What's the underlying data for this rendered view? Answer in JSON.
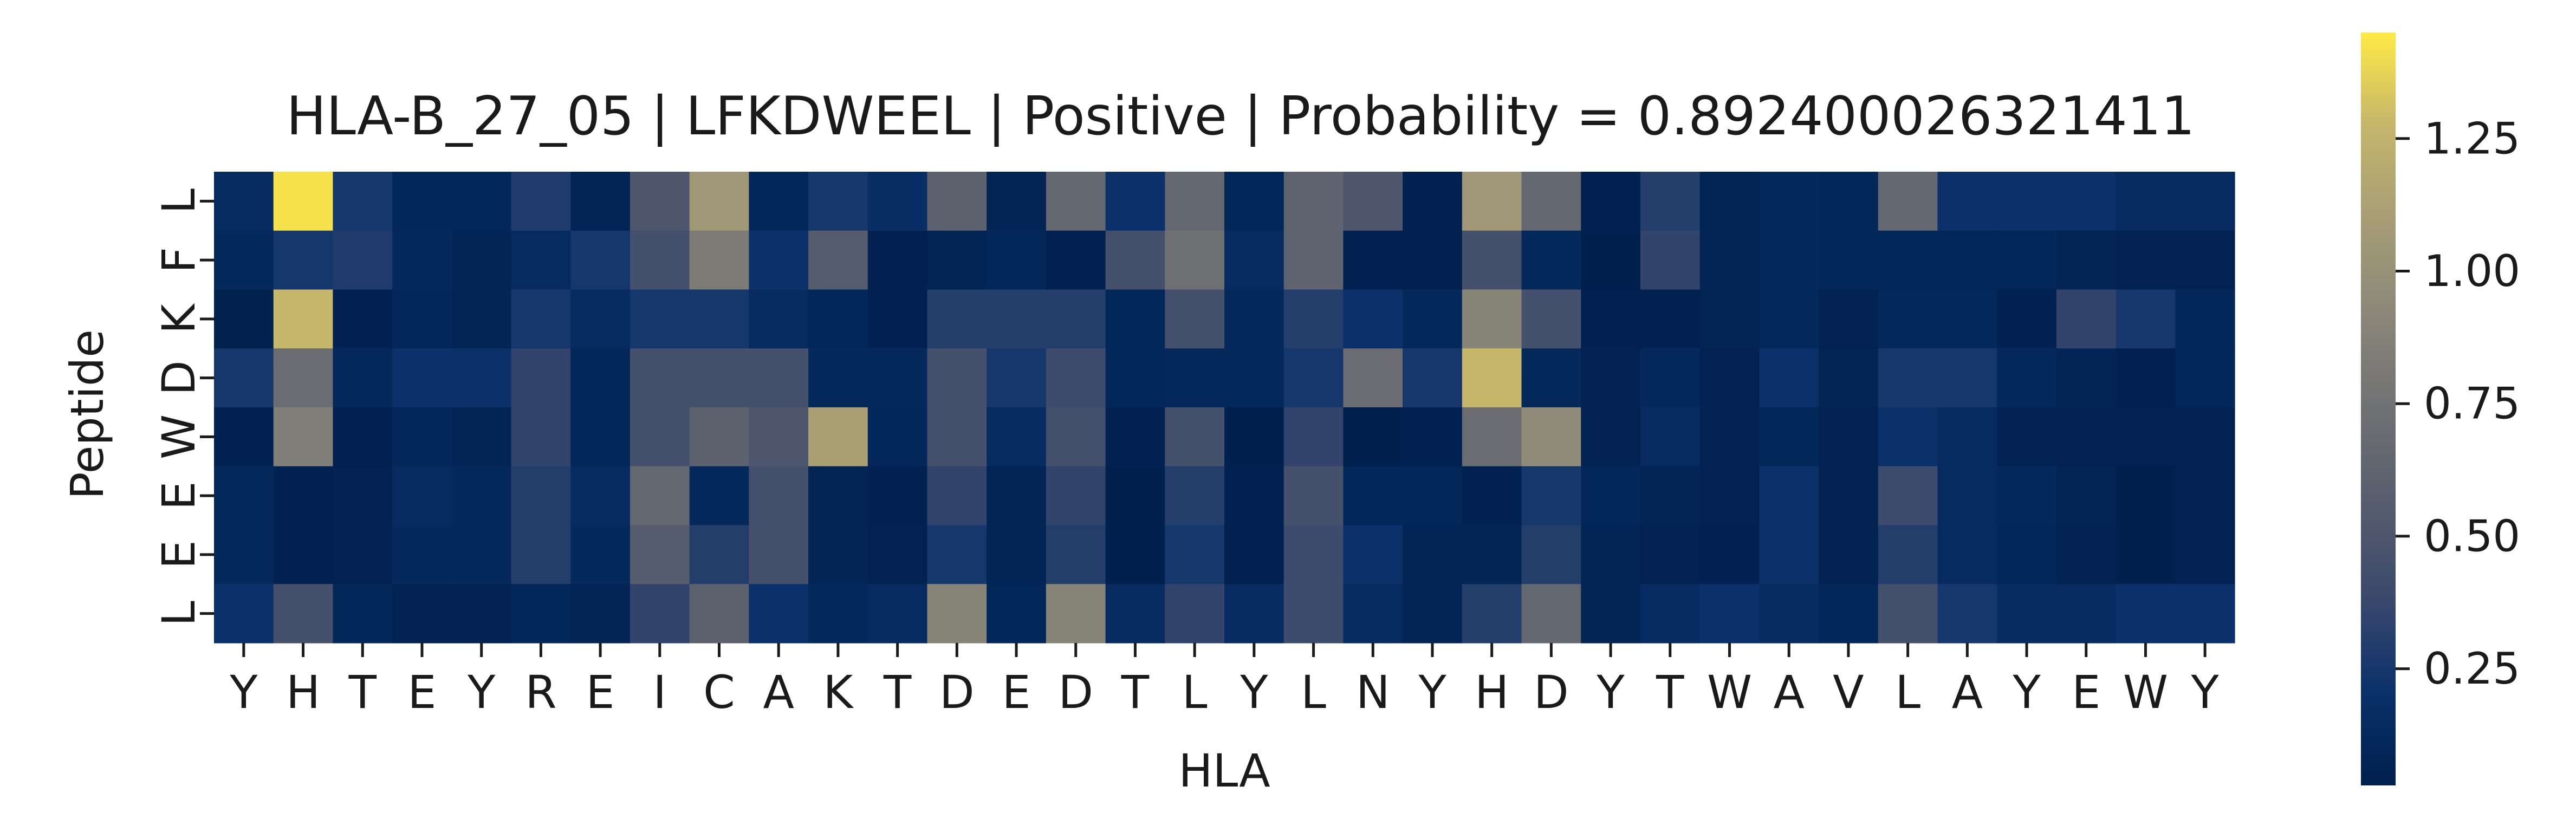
{
  "chart_data": {
    "type": "heatmap",
    "title": "HLA-B_27_05 | LFKDWEEL | Positive | Probability = 0.892400026321411",
    "xlabel": "HLA",
    "ylabel": "Peptide",
    "x_categories": [
      "Y",
      "H",
      "T",
      "E",
      "Y",
      "R",
      "E",
      "I",
      "C",
      "A",
      "K",
      "T",
      "D",
      "E",
      "D",
      "T",
      "L",
      "Y",
      "L",
      "N",
      "Y",
      "H",
      "D",
      "Y",
      "T",
      "W",
      "A",
      "V",
      "L",
      "A",
      "Y",
      "E",
      "W",
      "Y"
    ],
    "y_categories": [
      "L",
      "F",
      "K",
      "D",
      "W",
      "E",
      "E",
      "L"
    ],
    "colormap": "cividis",
    "colorbar": {
      "range": [
        0.03,
        1.45
      ],
      "ticks": [
        0.25,
        0.5,
        0.75,
        1.0,
        1.25
      ],
      "tick_labels": [
        "0.25",
        "0.50",
        "0.75",
        "1.00",
        "1.25"
      ]
    },
    "values": [
      [
        0.15,
        1.42,
        0.25,
        0.1,
        0.1,
        0.28,
        0.08,
        0.5,
        1.05,
        0.1,
        0.25,
        0.18,
        0.6,
        0.08,
        0.65,
        0.2,
        0.65,
        0.1,
        0.62,
        0.5,
        0.05,
        1.05,
        0.65,
        0.05,
        0.3,
        0.08,
        0.12,
        0.1,
        0.65,
        0.2,
        0.2,
        0.2,
        0.15,
        0.15
      ],
      [
        0.12,
        0.25,
        0.28,
        0.12,
        0.08,
        0.15,
        0.25,
        0.45,
        0.82,
        0.2,
        0.55,
        0.05,
        0.08,
        0.1,
        0.05,
        0.45,
        0.72,
        0.15,
        0.62,
        0.05,
        0.05,
        0.45,
        0.12,
        0.03,
        0.35,
        0.08,
        0.12,
        0.1,
        0.1,
        0.1,
        0.1,
        0.08,
        0.06,
        0.06
      ],
      [
        0.04,
        1.28,
        0.05,
        0.1,
        0.08,
        0.25,
        0.15,
        0.25,
        0.25,
        0.15,
        0.1,
        0.05,
        0.3,
        0.3,
        0.3,
        0.1,
        0.45,
        0.12,
        0.3,
        0.2,
        0.12,
        0.9,
        0.45,
        0.05,
        0.05,
        0.08,
        0.12,
        0.06,
        0.12,
        0.12,
        0.05,
        0.35,
        0.25,
        0.1
      ],
      [
        0.25,
        0.7,
        0.12,
        0.2,
        0.2,
        0.35,
        0.1,
        0.45,
        0.45,
        0.45,
        0.12,
        0.12,
        0.45,
        0.25,
        0.4,
        0.1,
        0.12,
        0.12,
        0.25,
        0.7,
        0.25,
        1.28,
        0.12,
        0.06,
        0.12,
        0.06,
        0.2,
        0.08,
        0.25,
        0.25,
        0.12,
        0.08,
        0.05,
        0.1
      ],
      [
        0.05,
        0.85,
        0.05,
        0.1,
        0.08,
        0.35,
        0.1,
        0.45,
        0.6,
        0.5,
        1.12,
        0.1,
        0.45,
        0.15,
        0.45,
        0.05,
        0.45,
        0.03,
        0.35,
        0.03,
        0.05,
        0.7,
        0.95,
        0.06,
        0.15,
        0.06,
        0.1,
        0.06,
        0.2,
        0.15,
        0.06,
        0.06,
        0.06,
        0.06
      ],
      [
        0.12,
        0.05,
        0.06,
        0.15,
        0.12,
        0.3,
        0.15,
        0.65,
        0.12,
        0.45,
        0.08,
        0.05,
        0.35,
        0.08,
        0.35,
        0.03,
        0.3,
        0.05,
        0.45,
        0.1,
        0.1,
        0.05,
        0.25,
        0.1,
        0.08,
        0.06,
        0.2,
        0.06,
        0.4,
        0.15,
        0.12,
        0.08,
        0.03,
        0.06
      ],
      [
        0.12,
        0.05,
        0.06,
        0.12,
        0.12,
        0.3,
        0.12,
        0.55,
        0.3,
        0.45,
        0.08,
        0.06,
        0.25,
        0.08,
        0.3,
        0.03,
        0.25,
        0.05,
        0.4,
        0.2,
        0.08,
        0.08,
        0.3,
        0.08,
        0.06,
        0.05,
        0.2,
        0.06,
        0.3,
        0.15,
        0.1,
        0.06,
        0.03,
        0.06
      ],
      [
        0.2,
        0.45,
        0.1,
        0.06,
        0.06,
        0.1,
        0.08,
        0.35,
        0.6,
        0.2,
        0.12,
        0.15,
        0.9,
        0.1,
        0.9,
        0.15,
        0.35,
        0.15,
        0.4,
        0.15,
        0.08,
        0.3,
        0.65,
        0.08,
        0.15,
        0.2,
        0.15,
        0.1,
        0.45,
        0.25,
        0.15,
        0.15,
        0.2,
        0.2
      ]
    ]
  }
}
